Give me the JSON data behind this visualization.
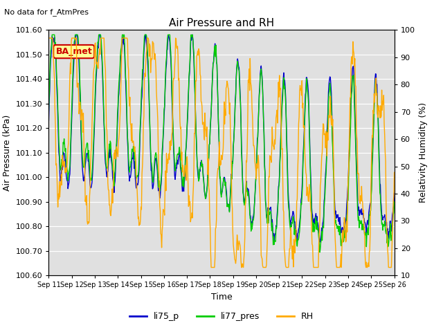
{
  "title": "Air Pressure and RH",
  "no_data_text": "No data for f_AtmPres",
  "ba_met_label": "BA_met",
  "xlabel": "Time",
  "ylabel_left": "Air Pressure (kPa)",
  "ylabel_right": "Relativity Humidity (%)",
  "ylim_left": [
    100.6,
    101.6
  ],
  "ylim_right": [
    10,
    100
  ],
  "yticks_left": [
    100.6,
    100.7,
    100.8,
    100.9,
    101.0,
    101.1,
    101.2,
    101.3,
    101.4,
    101.5,
    101.6
  ],
  "yticks_right": [
    10,
    20,
    30,
    40,
    50,
    60,
    70,
    80,
    90,
    100
  ],
  "x_tick_labels": [
    "Sep 11",
    "Sep 12",
    "Sep 13",
    "Sep 14",
    "Sep 15",
    "Sep 16",
    "Sep 17",
    "Sep 18",
    "Sep 19",
    "Sep 20",
    "Sep 21",
    "Sep 22",
    "Sep 23",
    "Sep 24",
    "Sep 25",
    "Sep 26"
  ],
  "colors": {
    "li75_p": "#0000cc",
    "li77_pres": "#00cc00",
    "RH": "#ffaa00",
    "background": "#e0e0e0",
    "ba_met_bg": "#ffff99",
    "ba_met_border": "#cc0000",
    "ba_met_text": "#cc0000"
  },
  "legend_labels": [
    "li75_p",
    "li77_pres",
    "RH"
  ],
  "line_width": 1.0
}
